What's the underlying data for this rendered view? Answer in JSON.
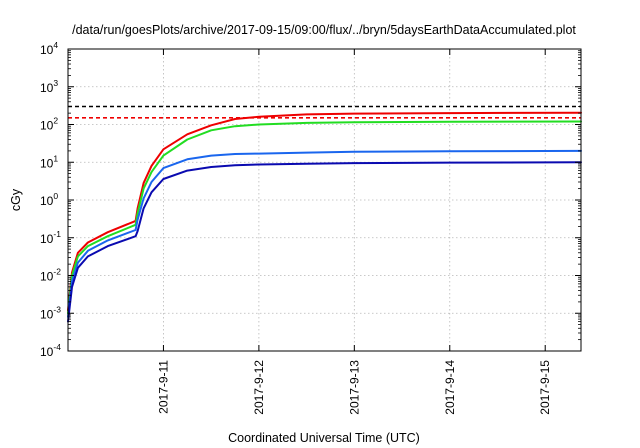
{
  "chart_data": {
    "type": "line",
    "title": "/data/run/goesPlots/archive/2017-09-15/09:00/flux/../bryn/5daysEarthDataAccumulated.plot",
    "xlabel": "Coordinated Universal Time (UTC)",
    "ylabel": "cGy",
    "x_scale": "time",
    "y_scale": "log",
    "xlim": [
      "2017-09-10T00:00",
      "2017-09-15T09:00"
    ],
    "ylim": [
      0.0001,
      10000
    ],
    "x_ticks": [
      "2017-9-11",
      "2017-9-12",
      "2017-9-13",
      "2017-9-14",
      "2017-9-15"
    ],
    "y_ticks": [
      {
        "base": "10",
        "exp": "-4",
        "value": 0.0001
      },
      {
        "base": "10",
        "exp": "-3",
        "value": 0.001
      },
      {
        "base": "10",
        "exp": "-2",
        "value": 0.01
      },
      {
        "base": "10",
        "exp": "-1",
        "value": 0.1
      },
      {
        "base": "10",
        "exp": "0",
        "value": 1
      },
      {
        "base": "10",
        "exp": "1",
        "value": 10
      },
      {
        "base": "10",
        "exp": "2",
        "value": 100
      },
      {
        "base": "10",
        "exp": "3",
        "value": 1000
      },
      {
        "base": "10",
        "exp": "4",
        "value": 10000
      }
    ],
    "grid": true,
    "legend": "none",
    "series": [
      {
        "color": "#ee0000",
        "x": [
          "2017-09-10T00:00",
          "2017-09-10T01:00",
          "2017-09-10T02:30",
          "2017-09-10T05:00",
          "2017-09-10T10:00",
          "2017-09-10T17:00",
          "2017-09-10T17:30",
          "2017-09-10T19:00",
          "2017-09-10T21:00",
          "2017-09-11T00:00",
          "2017-09-11T06:00",
          "2017-09-11T12:00",
          "2017-09-11T18:00",
          "2017-09-12T00:00",
          "2017-09-12T12:00",
          "2017-09-13T00:00",
          "2017-09-14T00:00",
          "2017-09-15T09:00"
        ],
        "values": [
          0.0012,
          0.012,
          0.04,
          0.075,
          0.14,
          0.28,
          0.6,
          2.8,
          8,
          22,
          55,
          95,
          140,
          160,
          185,
          195,
          200,
          205
        ]
      },
      {
        "color": "#22dd22",
        "x": [
          "2017-09-10T00:00",
          "2017-09-10T01:00",
          "2017-09-10T02:30",
          "2017-09-10T05:00",
          "2017-09-10T10:00",
          "2017-09-10T17:00",
          "2017-09-10T17:30",
          "2017-09-10T19:00",
          "2017-09-10T21:00",
          "2017-09-11T00:00",
          "2017-09-11T06:00",
          "2017-09-11T12:00",
          "2017-09-11T18:00",
          "2017-09-12T00:00",
          "2017-09-12T12:00",
          "2017-09-13T00:00",
          "2017-09-14T00:00",
          "2017-09-15T09:00"
        ],
        "values": [
          0.001,
          0.01,
          0.032,
          0.06,
          0.11,
          0.22,
          0.45,
          2,
          5.5,
          15,
          40,
          70,
          90,
          100,
          110,
          115,
          118,
          120
        ]
      },
      {
        "color": "#1a66ee",
        "x": [
          "2017-09-10T00:00",
          "2017-09-10T01:00",
          "2017-09-10T02:30",
          "2017-09-10T05:00",
          "2017-09-10T10:00",
          "2017-09-10T17:00",
          "2017-09-10T17:30",
          "2017-09-10T19:00",
          "2017-09-10T21:00",
          "2017-09-11T00:00",
          "2017-09-11T06:00",
          "2017-09-11T12:00",
          "2017-09-11T18:00",
          "2017-09-12T00:00",
          "2017-09-12T12:00",
          "2017-09-13T00:00",
          "2017-09-14T00:00",
          "2017-09-15T09:00"
        ],
        "values": [
          0.0008,
          0.007,
          0.022,
          0.045,
          0.085,
          0.16,
          0.3,
          1.1,
          3,
          7,
          12,
          15,
          16.5,
          17,
          18,
          19,
          19.5,
          20
        ]
      },
      {
        "color": "#0a0ab0",
        "x": [
          "2017-09-10T00:00",
          "2017-09-10T01:00",
          "2017-09-10T02:30",
          "2017-09-10T05:00",
          "2017-09-10T10:00",
          "2017-09-10T17:00",
          "2017-09-10T17:30",
          "2017-09-10T19:00",
          "2017-09-10T21:00",
          "2017-09-11T00:00",
          "2017-09-11T06:00",
          "2017-09-11T12:00",
          "2017-09-11T18:00",
          "2017-09-12T00:00",
          "2017-09-12T12:00",
          "2017-09-13T00:00",
          "2017-09-14T00:00",
          "2017-09-15T09:00"
        ],
        "values": [
          0.0006,
          0.005,
          0.016,
          0.032,
          0.06,
          0.11,
          0.15,
          0.6,
          1.6,
          3.6,
          6,
          7.5,
          8.3,
          8.7,
          9.1,
          9.5,
          9.8,
          10
        ]
      }
    ],
    "reference_lines": [
      {
        "color": "#000000",
        "style": "dashed",
        "y": 300
      },
      {
        "color": "#ee0000",
        "style": "dashed",
        "y": 150
      }
    ]
  }
}
